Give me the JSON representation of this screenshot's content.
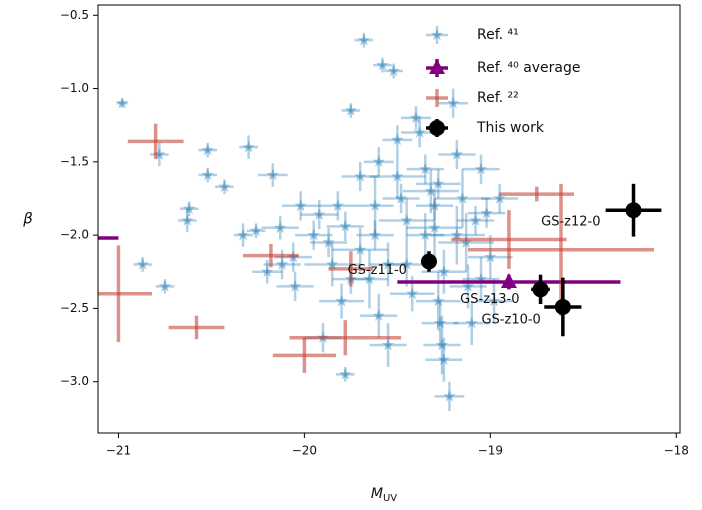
{
  "chart_data": {
    "type": "scatter",
    "x_label": {
      "main": "M",
      "sub": "UV"
    },
    "y_label": "β",
    "xlim": [
      -21.11,
      -17.98
    ],
    "ylim": [
      -3.35,
      -0.43
    ],
    "xticks": [
      {
        "value": -21,
        "label": "−21"
      },
      {
        "value": -20,
        "label": "−20"
      },
      {
        "value": -19,
        "label": "−19"
      },
      {
        "value": -18,
        "label": "−18"
      }
    ],
    "yticks": [
      {
        "value": -0.5,
        "label": "−0.5"
      },
      {
        "value": -1.0,
        "label": "−1.0"
      },
      {
        "value": -1.5,
        "label": "−1.5"
      },
      {
        "value": -2.0,
        "label": "−2.0"
      },
      {
        "value": -2.5,
        "label": "−2.5"
      },
      {
        "value": -3.0,
        "label": "−3.0"
      }
    ],
    "grid": false,
    "legend": "upper right",
    "series": [
      {
        "name": "Ref. ⁴¹",
        "color": "#1f77b4",
        "marker": "star",
        "x": [
          -20.98,
          -20.87,
          -20.75,
          -20.78,
          -20.63,
          -20.62,
          -20.52,
          -20.52,
          -20.43,
          -20.33,
          -20.26,
          -20.3,
          -20.17,
          -20.13,
          -20.12,
          -20.05,
          -20.02,
          -19.92,
          -19.87,
          -19.82,
          -19.8,
          -19.78,
          -19.75,
          -19.7,
          -19.68,
          -19.58,
          -19.52,
          -19.62,
          -19.55,
          -19.5,
          -19.45,
          -19.42,
          -19.38,
          -19.35,
          -19.32,
          -19.3,
          -19.28,
          -19.27,
          -19.26,
          -19.25,
          -19.22,
          -19.2,
          -19.18,
          -19.15,
          -19.13,
          -19.12,
          -19.1,
          -19.05,
          -19.02,
          -19.0,
          -18.98,
          -19.4,
          -19.5,
          -19.6,
          -19.7,
          -19.65,
          -19.85,
          -19.95,
          -19.9,
          -19.78,
          -19.6,
          -19.55,
          -19.45,
          -19.35,
          -19.3,
          -19.28,
          -19.25,
          -19.18,
          -19.08,
          -18.95,
          -19.05,
          -19.48,
          -19.62,
          -20.2,
          -20.06,
          -19.75
        ],
        "values": [
          -1.1,
          -2.2,
          -2.35,
          -1.45,
          -1.9,
          -1.82,
          -1.42,
          -1.59,
          -1.67,
          -2.0,
          -1.97,
          -1.4,
          -1.59,
          -1.95,
          -2.2,
          -2.35,
          -1.8,
          -1.86,
          -2.05,
          -1.8,
          -2.45,
          -1.94,
          -1.15,
          -2.1,
          -0.67,
          -0.84,
          -0.88,
          -1.8,
          -2.2,
          -1.6,
          -1.9,
          -2.4,
          -1.3,
          -1.55,
          -1.7,
          -1.95,
          -2.45,
          -2.6,
          -2.75,
          -2.85,
          -3.1,
          -1.1,
          -1.45,
          -1.75,
          -2.05,
          -2.35,
          -2.6,
          -1.55,
          -1.85,
          -2.15,
          -2.45,
          -1.2,
          -1.35,
          -1.5,
          -1.6,
          -2.3,
          -2.2,
          -2.0,
          -2.7,
          -2.95,
          -2.55,
          -2.75,
          -2.2,
          -2.0,
          -1.8,
          -1.65,
          -2.25,
          -2.0,
          -1.9,
          -1.75,
          -2.3,
          -1.75,
          -2.0,
          -2.25,
          -2.15,
          -2.3
        ],
        "xerr": [
          0.03,
          0.05,
          0.05,
          0.05,
          0.05,
          0.05,
          0.05,
          0.05,
          0.05,
          0.05,
          0.05,
          0.05,
          0.08,
          0.1,
          0.1,
          0.1,
          0.1,
          0.1,
          0.1,
          0.1,
          0.12,
          0.1,
          0.05,
          0.15,
          0.05,
          0.05,
          0.05,
          0.1,
          0.1,
          0.15,
          0.15,
          0.12,
          0.1,
          0.1,
          0.15,
          0.15,
          0.12,
          0.1,
          0.1,
          0.1,
          0.08,
          0.08,
          0.1,
          0.15,
          0.15,
          0.1,
          0.1,
          0.1,
          0.1,
          0.12,
          0.1,
          0.08,
          0.08,
          0.08,
          0.1,
          0.1,
          0.15,
          0.1,
          0.1,
          0.05,
          0.1,
          0.1,
          0.12,
          0.1,
          0.1,
          0.12,
          0.12,
          0.15,
          0.1,
          0.1,
          0.1,
          0.1,
          0.1,
          0.08,
          0.1,
          0.1
        ],
        "yerr": [
          0.03,
          0.05,
          0.05,
          0.08,
          0.08,
          0.05,
          0.05,
          0.05,
          0.05,
          0.08,
          0.05,
          0.08,
          0.08,
          0.08,
          0.1,
          0.1,
          0.1,
          0.1,
          0.1,
          0.1,
          0.12,
          0.1,
          0.05,
          0.15,
          0.05,
          0.05,
          0.05,
          0.2,
          0.15,
          0.15,
          0.15,
          0.12,
          0.1,
          0.1,
          0.15,
          0.2,
          0.2,
          0.15,
          0.2,
          0.15,
          0.1,
          0.1,
          0.1,
          0.2,
          0.2,
          0.15,
          0.15,
          0.1,
          0.1,
          0.15,
          0.15,
          0.08,
          0.1,
          0.1,
          0.1,
          0.2,
          0.15,
          0.1,
          0.1,
          0.05,
          0.15,
          0.15,
          0.15,
          0.15,
          0.1,
          0.1,
          0.15,
          0.2,
          0.1,
          0.1,
          0.15,
          0.1,
          0.1,
          0.08,
          0.1,
          0.1
        ]
      },
      {
        "name": "Ref. ⁴⁰ average",
        "color": "#800080",
        "marker": "triangle",
        "x": [
          -18.9,
          -21.6
        ],
        "values": [
          -2.32,
          -2.02
        ],
        "xerr": [
          0.6,
          0.6
        ],
        "yerr": [
          0.05,
          0.0
        ]
      },
      {
        "name": "Ref. ²²",
        "color": "#c0392b",
        "marker": "none",
        "x": [
          -20.8,
          -21.0,
          -20.58,
          -20.18,
          -20.0,
          -19.78,
          -19.75,
          -18.9,
          -18.75,
          -18.62
        ],
        "values": [
          -1.36,
          -2.4,
          -2.63,
          -2.14,
          -2.82,
          -2.7,
          -2.23,
          -2.03,
          -1.72,
          -2.1
        ],
        "xerr": [
          0.15,
          0.18,
          0.15,
          0.15,
          0.17,
          0.3,
          0.12,
          0.31,
          0.2,
          0.5
        ],
        "yerr": [
          0.12,
          0.33,
          0.08,
          0.08,
          0.12,
          0.12,
          0.12,
          0.2,
          0.05,
          0.45
        ]
      },
      {
        "name": "This work",
        "color": "#000000",
        "marker": "circle",
        "x": [
          -19.33,
          -18.73,
          -18.61,
          -18.23
        ],
        "values": [
          -2.18,
          -2.37,
          -2.49,
          -1.83
        ],
        "xerr": [
          0.03,
          0.05,
          0.1,
          0.15
        ],
        "yerr": [
          0.07,
          0.1,
          0.2,
          0.18
        ],
        "point_labels": [
          "GS-z11-0",
          "GS-z13-0",
          "GS-z10-0",
          "GS-z12-0"
        ]
      }
    ]
  }
}
